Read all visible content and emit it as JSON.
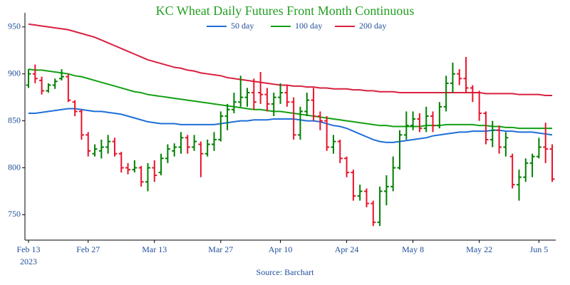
{
  "chart_data": {
    "type": "ohlc",
    "title": "KC Wheat Daily Futures Front Month Continuous",
    "source": "Source: Barchart",
    "x_year_label": "2023",
    "x": [
      "2023-02-13",
      "2023-02-14",
      "2023-02-15",
      "2023-02-16",
      "2023-02-17",
      "2023-02-21",
      "2023-02-22",
      "2023-02-23",
      "2023-02-24",
      "2023-02-27",
      "2023-02-28",
      "2023-03-01",
      "2023-03-02",
      "2023-03-03",
      "2023-03-06",
      "2023-03-07",
      "2023-03-08",
      "2023-03-09",
      "2023-03-10",
      "2023-03-13",
      "2023-03-14",
      "2023-03-15",
      "2023-03-16",
      "2023-03-17",
      "2023-03-20",
      "2023-03-21",
      "2023-03-22",
      "2023-03-23",
      "2023-03-24",
      "2023-03-27",
      "2023-03-28",
      "2023-03-29",
      "2023-03-30",
      "2023-03-31",
      "2023-04-03",
      "2023-04-04",
      "2023-04-05",
      "2023-04-06",
      "2023-04-10",
      "2023-04-11",
      "2023-04-12",
      "2023-04-13",
      "2023-04-14",
      "2023-04-17",
      "2023-04-18",
      "2023-04-19",
      "2023-04-20",
      "2023-04-21",
      "2023-04-24",
      "2023-04-25",
      "2023-04-26",
      "2023-04-27",
      "2023-04-28",
      "2023-05-01",
      "2023-05-02",
      "2023-05-03",
      "2023-05-04",
      "2023-05-05",
      "2023-05-08",
      "2023-05-09",
      "2023-05-10",
      "2023-05-11",
      "2023-05-12",
      "2023-05-15",
      "2023-05-16",
      "2023-05-17",
      "2023-05-18",
      "2023-05-19",
      "2023-05-22",
      "2023-05-23",
      "2023-05-24",
      "2023-05-25",
      "2023-05-26",
      "2023-05-30",
      "2023-05-31",
      "2023-06-01",
      "2023-06-02",
      "2023-06-05",
      "2023-06-06",
      "2023-06-07"
    ],
    "open": [
      888,
      900,
      893,
      882,
      888,
      895,
      897,
      870,
      860,
      835,
      815,
      818,
      822,
      828,
      815,
      800,
      798,
      800,
      785,
      800,
      795,
      810,
      818,
      822,
      832,
      822,
      825,
      815,
      825,
      830,
      855,
      862,
      870,
      875,
      880,
      880,
      878,
      868,
      875,
      880,
      870,
      835,
      860,
      872,
      855,
      850,
      822,
      828,
      810,
      795,
      770,
      775,
      762,
      742,
      775,
      780,
      800,
      835,
      845,
      852,
      842,
      855,
      845,
      865,
      890,
      900,
      895,
      885,
      880,
      858,
      830,
      840,
      822,
      812,
      782,
      790,
      805,
      812,
      822,
      820
    ],
    "high": [
      905,
      910,
      897,
      890,
      895,
      905,
      900,
      872,
      862,
      838,
      825,
      830,
      835,
      832,
      817,
      805,
      808,
      802,
      805,
      808,
      815,
      825,
      826,
      838,
      835,
      835,
      828,
      830,
      838,
      860,
      868,
      880,
      898,
      885,
      895,
      902,
      885,
      880,
      890,
      888,
      875,
      865,
      880,
      885,
      860,
      855,
      835,
      830,
      812,
      798,
      782,
      778,
      765,
      780,
      792,
      812,
      840,
      860,
      860,
      858,
      865,
      860,
      870,
      898,
      912,
      905,
      918,
      888,
      882,
      860,
      850,
      845,
      838,
      815,
      798,
      810,
      815,
      832,
      848,
      825
    ],
    "low": [
      885,
      890,
      878,
      880,
      884,
      893,
      870,
      855,
      830,
      812,
      812,
      810,
      815,
      812,
      795,
      793,
      795,
      780,
      775,
      785,
      792,
      805,
      812,
      815,
      815,
      818,
      790,
      812,
      818,
      828,
      840,
      858,
      865,
      865,
      862,
      868,
      860,
      855,
      868,
      865,
      830,
      830,
      855,
      850,
      840,
      818,
      815,
      805,
      790,
      765,
      765,
      758,
      738,
      738,
      760,
      775,
      798,
      830,
      840,
      838,
      838,
      838,
      842,
      860,
      880,
      888,
      880,
      870,
      850,
      825,
      822,
      815,
      812,
      778,
      765,
      785,
      790,
      810,
      805,
      785
    ],
    "close": [
      900,
      895,
      882,
      888,
      892,
      897,
      872,
      860,
      835,
      818,
      820,
      822,
      828,
      815,
      800,
      798,
      800,
      785,
      800,
      792,
      810,
      820,
      822,
      832,
      822,
      828,
      815,
      825,
      830,
      855,
      862,
      870,
      875,
      880,
      870,
      878,
      868,
      875,
      880,
      870,
      835,
      860,
      872,
      855,
      850,
      822,
      828,
      810,
      795,
      770,
      775,
      762,
      742,
      775,
      780,
      800,
      835,
      845,
      852,
      842,
      855,
      845,
      865,
      890,
      900,
      895,
      885,
      880,
      858,
      830,
      840,
      822,
      832,
      782,
      790,
      805,
      812,
      822,
      820,
      788
    ],
    "up_color": "#008000",
    "down_color": "#e8132b",
    "series": [
      {
        "name": "50 day",
        "color": "#1f6fd8",
        "values": [
          858,
          858,
          859,
          860,
          861,
          862,
          863,
          863,
          862,
          861,
          860,
          860,
          859,
          858,
          857,
          855,
          853,
          851,
          849,
          848,
          847,
          847,
          847,
          846,
          846,
          846,
          846,
          846,
          846,
          847,
          848,
          849,
          850,
          850,
          851,
          851,
          851,
          852,
          852,
          852,
          852,
          851,
          850,
          850,
          849,
          847,
          845,
          844,
          842,
          839,
          836,
          833,
          830,
          828,
          827,
          827,
          828,
          829,
          830,
          831,
          832,
          834,
          835,
          836,
          837,
          838,
          838,
          839,
          839,
          839,
          840,
          840,
          839,
          839,
          838,
          838,
          838,
          837,
          836,
          835
        ]
      },
      {
        "name": "100 day",
        "color": "#12a012",
        "values": [
          905,
          904,
          904,
          903,
          902,
          901,
          900,
          898,
          897,
          895,
          893,
          891,
          889,
          887,
          885,
          883,
          881,
          880,
          878,
          877,
          876,
          875,
          874,
          873,
          872,
          871,
          870,
          869,
          868,
          867,
          866,
          865,
          864,
          863,
          862,
          862,
          861,
          860,
          860,
          859,
          858,
          857,
          856,
          855,
          854,
          853,
          852,
          851,
          850,
          849,
          848,
          847,
          846,
          845,
          845,
          844,
          844,
          844,
          844,
          844,
          845,
          845,
          845,
          846,
          846,
          846,
          846,
          846,
          845,
          845,
          844,
          844,
          843,
          843,
          842,
          842,
          842,
          842,
          842,
          842
        ]
      },
      {
        "name": "200 day",
        "color": "#d9203f",
        "values": [
          953,
          952,
          951,
          950,
          949,
          948,
          947,
          945,
          943,
          941,
          939,
          936,
          933,
          930,
          927,
          924,
          921,
          918,
          915,
          913,
          911,
          909,
          907,
          906,
          904,
          903,
          901,
          900,
          899,
          898,
          896,
          895,
          894,
          893,
          892,
          891,
          890,
          889,
          888,
          888,
          887,
          887,
          886,
          886,
          885,
          885,
          884,
          884,
          884,
          883,
          883,
          882,
          882,
          881,
          881,
          881,
          880,
          880,
          880,
          880,
          880,
          880,
          880,
          880,
          880,
          880,
          880,
          880,
          880,
          879,
          879,
          879,
          879,
          879,
          878,
          878,
          878,
          878,
          877,
          877
        ]
      }
    ],
    "ylim": [
      723,
      965
    ],
    "yticks": [
      750,
      800,
      850,
      900,
      950
    ],
    "xticks": [
      {
        "value": "2023-02-13",
        "label": "Feb 13"
      },
      {
        "value": "2023-02-27",
        "label": "Feb 27"
      },
      {
        "value": "2023-03-13",
        "label": "Mar 13"
      },
      {
        "value": "2023-03-27",
        "label": "Mar 27"
      },
      {
        "value": "2023-04-10",
        "label": "Apr 10"
      },
      {
        "value": "2023-04-24",
        "label": "Apr 24"
      },
      {
        "value": "2023-05-08",
        "label": "May 8"
      },
      {
        "value": "2023-05-22",
        "label": "May 22"
      },
      {
        "value": "2023-06-05",
        "label": "Jun 5"
      }
    ]
  }
}
